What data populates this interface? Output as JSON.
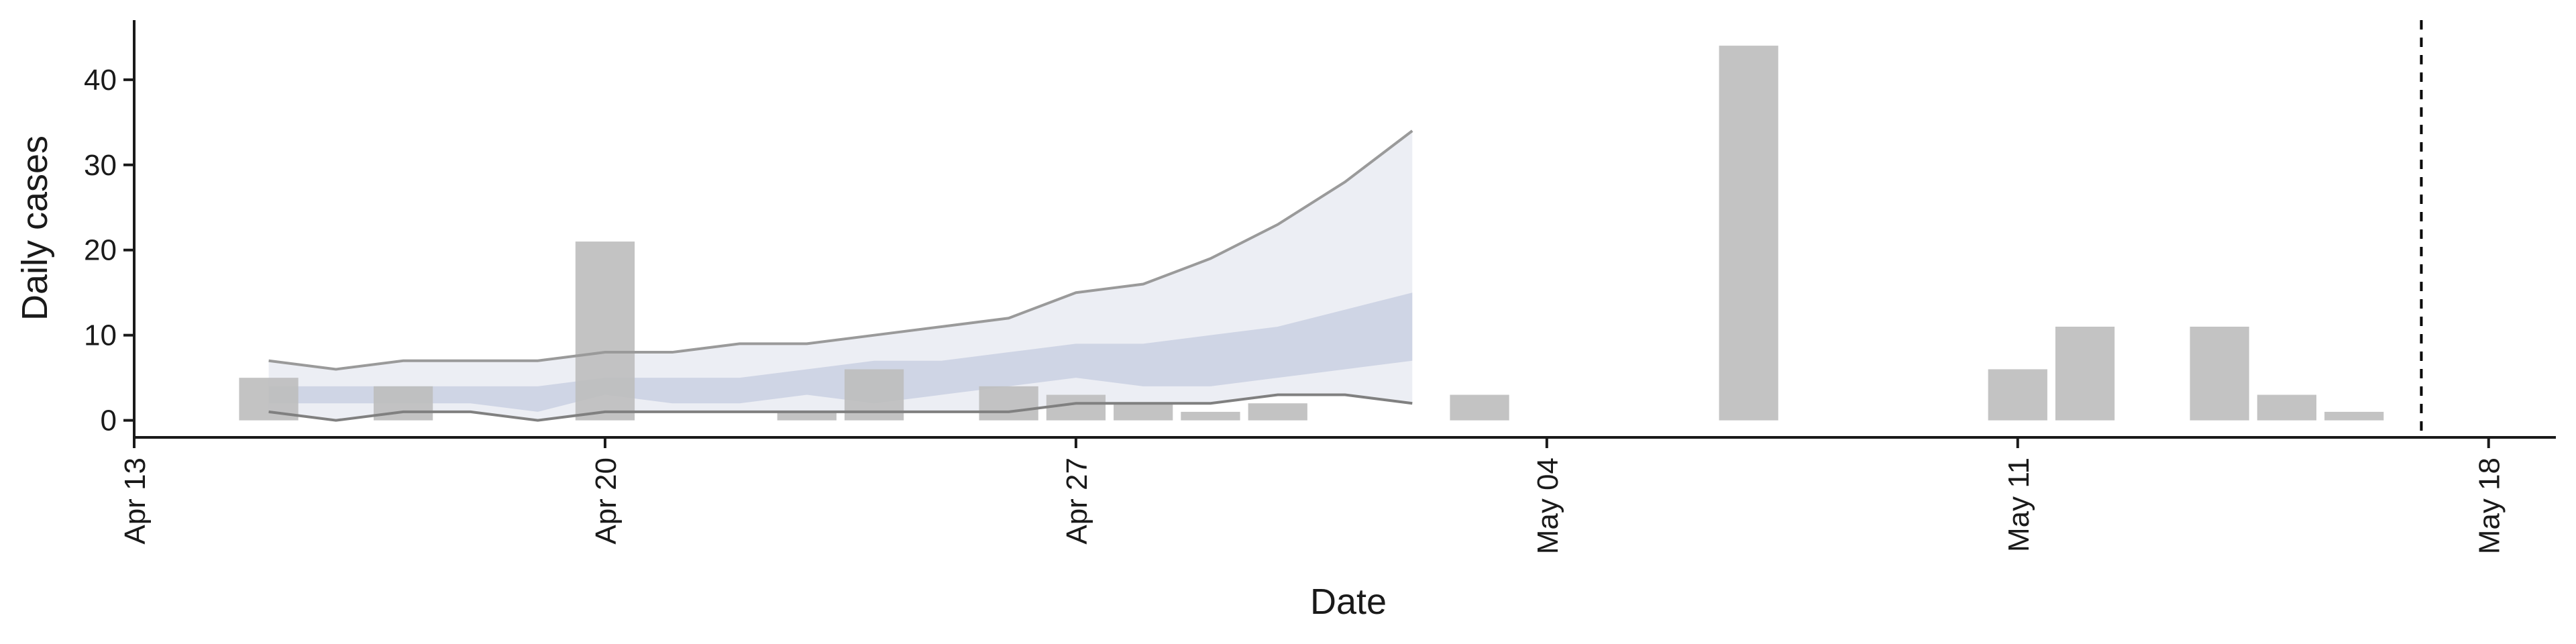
{
  "chart_data": {
    "type": "bar",
    "title": "",
    "xlabel": "Date",
    "ylabel": "Daily cases",
    "x_start": "2020-04-13",
    "x_end": "2020-05-19",
    "ylim": [
      -2,
      47
    ],
    "x_ticks": [
      {
        "date": "2020-04-13",
        "label": "Apr 13"
      },
      {
        "date": "2020-04-20",
        "label": "Apr 20"
      },
      {
        "date": "2020-04-27",
        "label": "Apr 27"
      },
      {
        "date": "2020-05-04",
        "label": "May 04"
      },
      {
        "date": "2020-05-11",
        "label": "May 11"
      },
      {
        "date": "2020-05-18",
        "label": "May 18"
      }
    ],
    "y_ticks": [
      0,
      10,
      20,
      30,
      40
    ],
    "cases": [
      {
        "date": "2020-04-15",
        "value": 5
      },
      {
        "date": "2020-04-17",
        "value": 4
      },
      {
        "date": "2020-04-20",
        "value": 21
      },
      {
        "date": "2020-04-23",
        "value": 1
      },
      {
        "date": "2020-04-24",
        "value": 6
      },
      {
        "date": "2020-04-26",
        "value": 4
      },
      {
        "date": "2020-04-27",
        "value": 3
      },
      {
        "date": "2020-04-28",
        "value": 2
      },
      {
        "date": "2020-04-29",
        "value": 1
      },
      {
        "date": "2020-04-30",
        "value": 2
      },
      {
        "date": "2020-05-03",
        "value": 3
      },
      {
        "date": "2020-05-07",
        "value": 44
      },
      {
        "date": "2020-05-11",
        "value": 6
      },
      {
        "date": "2020-05-12",
        "value": 11
      },
      {
        "date": "2020-05-14",
        "value": 11
      },
      {
        "date": "2020-05-15",
        "value": 3
      },
      {
        "date": "2020-05-16",
        "value": 1
      }
    ],
    "estimate": {
      "dates": [
        "2020-04-15",
        "2020-04-16",
        "2020-04-17",
        "2020-04-18",
        "2020-04-19",
        "2020-04-20",
        "2020-04-21",
        "2020-04-22",
        "2020-04-23",
        "2020-04-24",
        "2020-04-25",
        "2020-04-26",
        "2020-04-27",
        "2020-04-28",
        "2020-04-29",
        "2020-04-30",
        "2020-05-01",
        "2020-05-02"
      ],
      "inner_lower": [
        2,
        2,
        2,
        2,
        1,
        3,
        2,
        2,
        3,
        2,
        3,
        4,
        5,
        4,
        4,
        5,
        6,
        7
      ],
      "inner_upper": [
        4,
        4,
        4,
        4,
        4,
        5,
        5,
        5,
        6,
        7,
        7,
        8,
        9,
        9,
        10,
        11,
        13,
        15
      ],
      "outer_lower": [
        1,
        0,
        1,
        1,
        0,
        1,
        1,
        1,
        1,
        1,
        1,
        1,
        2,
        2,
        2,
        3,
        3,
        2
      ],
      "outer_upper": [
        7,
        6,
        7,
        7,
        7,
        8,
        8,
        9,
        9,
        10,
        11,
        12,
        15,
        16,
        19,
        23,
        28,
        34
      ]
    },
    "vline_date": "2020-05-17",
    "colors": {
      "bar": "#bebebe",
      "inner_band": "#c5cce0",
      "outer_band": "#eceef4",
      "outer_line": "#9a9a9a",
      "axis": "#1a1a1a"
    }
  }
}
